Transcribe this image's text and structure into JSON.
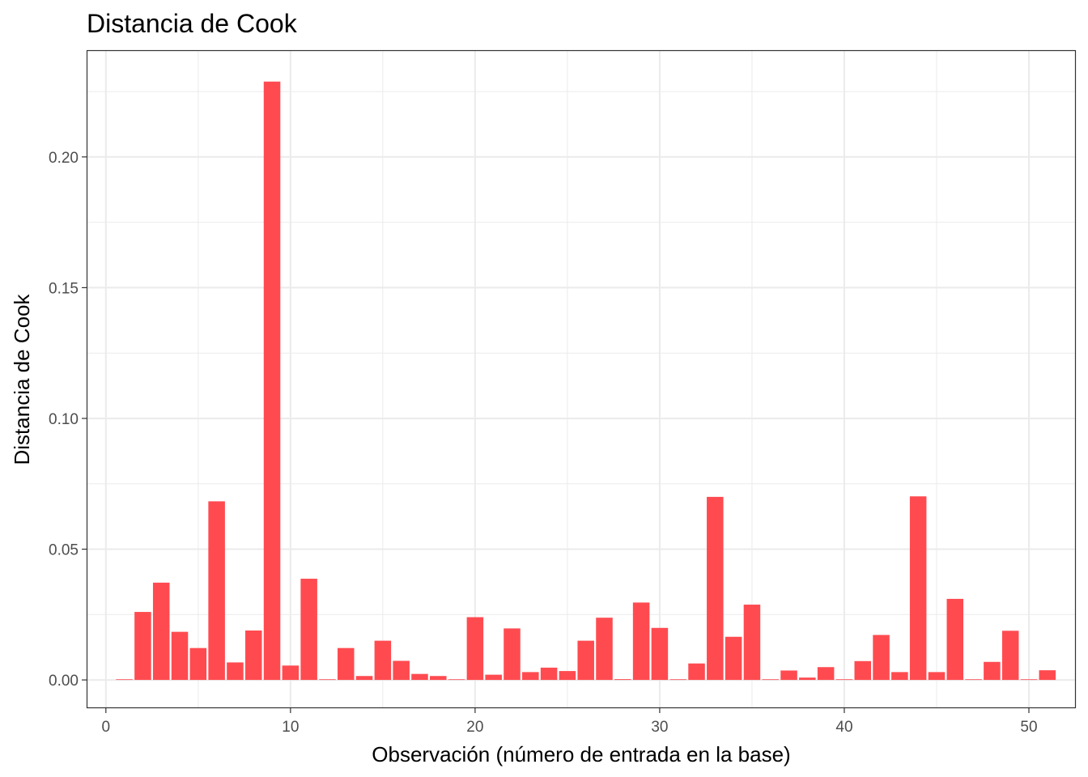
{
  "chart_data": {
    "type": "bar",
    "title": "Distancia de Cook",
    "xlabel": "Observación (número de entrada en la base)",
    "ylabel": "Distancia de Cook",
    "xlim": [
      -1,
      52.5
    ],
    "ylim": [
      -0.0105,
      0.2405
    ],
    "x_ticks": [
      0,
      10,
      20,
      30,
      40,
      50
    ],
    "x_tick_labels": [
      "0",
      "10",
      "20",
      "30",
      "40",
      "50"
    ],
    "y_ticks": [
      0.0,
      0.05,
      0.1,
      0.15,
      0.2
    ],
    "y_tick_labels": [
      "0.00",
      "0.05",
      "0.10",
      "0.15",
      "0.20"
    ],
    "grid": true,
    "bar_color": "#ff4b50",
    "x": [
      1,
      2,
      3,
      4,
      5,
      6,
      7,
      8,
      9,
      10,
      11,
      12,
      13,
      14,
      15,
      16,
      17,
      18,
      19,
      20,
      21,
      22,
      23,
      24,
      25,
      26,
      27,
      28,
      29,
      30,
      31,
      32,
      33,
      34,
      35,
      36,
      37,
      38,
      39,
      40,
      41,
      42,
      43,
      44,
      45,
      46,
      47,
      48,
      49,
      50,
      51
    ],
    "values": [
      0.0002,
      0.026,
      0.0372,
      0.0184,
      0.0122,
      0.0683,
      0.0067,
      0.0189,
      0.2288,
      0.0055,
      0.0387,
      0.0002,
      0.0122,
      0.0015,
      0.015,
      0.0073,
      0.0023,
      0.0015,
      0.0002,
      0.024,
      0.002,
      0.0197,
      0.003,
      0.0047,
      0.0034,
      0.015,
      0.0238,
      0.0003,
      0.0296,
      0.0199,
      0.0,
      0.0063,
      0.07,
      0.0165,
      0.0288,
      0.0,
      0.0036,
      0.0009,
      0.0049,
      0.0002,
      0.0072,
      0.0172,
      0.003,
      0.0702,
      0.003,
      0.031,
      0.0002,
      0.0069,
      0.0188,
      0.0,
      0.0037
    ]
  }
}
